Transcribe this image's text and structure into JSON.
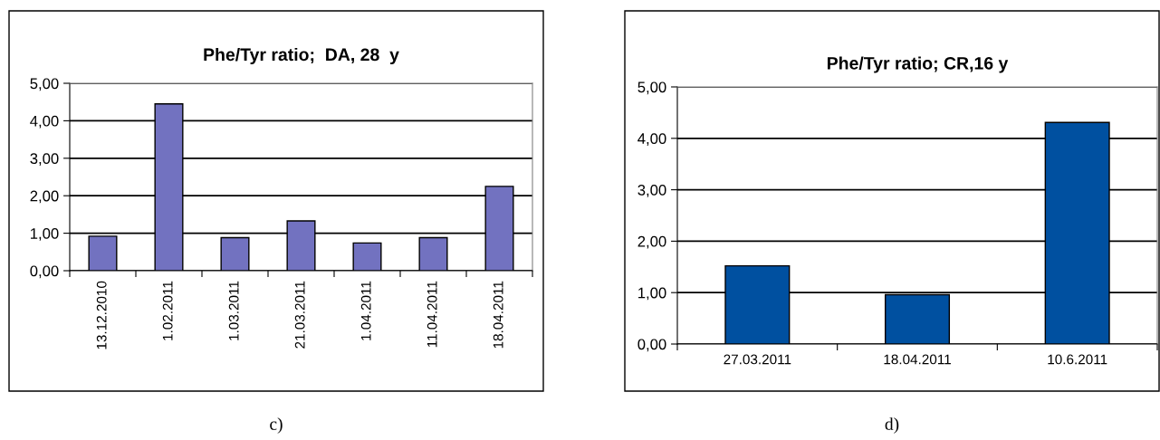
{
  "chart_data": [
    {
      "type": "bar",
      "title": "Phe/Tyr ratio;  DA, 28  y",
      "categories": [
        "13.12.2010",
        "1.02.2011",
        "1.03.2011",
        "21.03.2011",
        "1.04.2011",
        "11.04.2011",
        "18.04.2011"
      ],
      "values": [
        0.92,
        4.45,
        0.88,
        1.33,
        0.74,
        0.88,
        2.25
      ],
      "color": "#7272c0",
      "ylim": [
        0,
        5
      ],
      "yticks": [
        {
          "value": 0,
          "label": "0,00"
        },
        {
          "value": 1,
          "label": "1,00"
        },
        {
          "value": 2,
          "label": "2,00"
        },
        {
          "value": 3,
          "label": "3,00"
        },
        {
          "value": 4,
          "label": "4,00"
        },
        {
          "value": 5,
          "label": "5,00"
        }
      ],
      "grid": "y",
      "annotations": [
        "c)"
      ]
    },
    {
      "type": "bar",
      "title": "Phe/Tyr ratio; CR,16 y",
      "categories": [
        "27.03.2011",
        "18.04.2011",
        "10.6.2011"
      ],
      "values": [
        1.52,
        0.96,
        4.31
      ],
      "color": "#0050a0",
      "ylim": [
        0,
        5
      ],
      "yticks": [
        {
          "value": 0,
          "label": "0,00"
        },
        {
          "value": 1,
          "label": "1,00"
        },
        {
          "value": 2,
          "label": "2,00"
        },
        {
          "value": 3,
          "label": "3,00"
        },
        {
          "value": 4,
          "label": "4,00"
        },
        {
          "value": 5,
          "label": "5,00"
        }
      ],
      "grid": "y",
      "annotations": [
        "d)"
      ]
    }
  ]
}
